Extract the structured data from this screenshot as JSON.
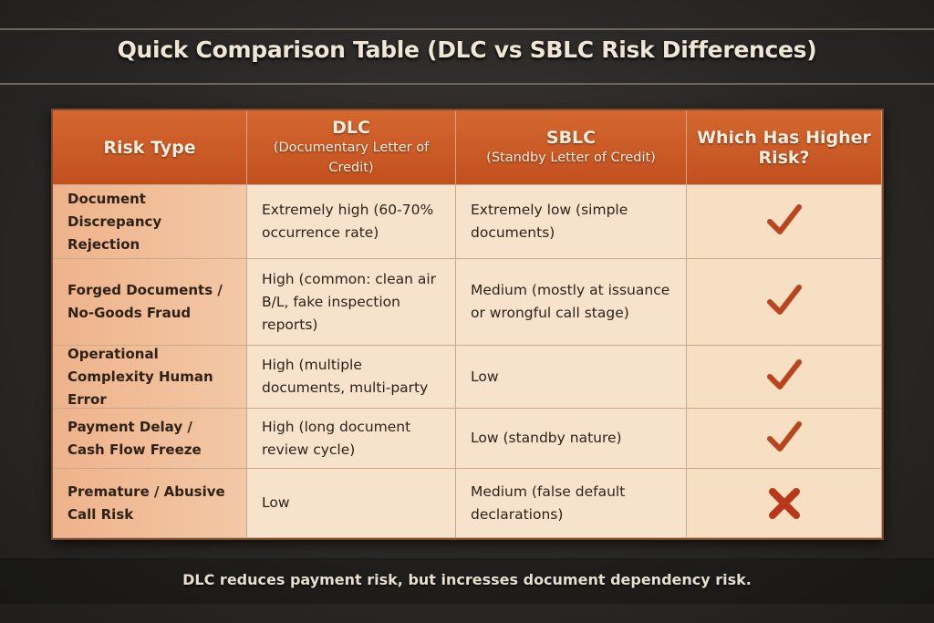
{
  "header": {
    "title": "Quick Comparison Table (DLC vs SBLC Risk Differences)"
  },
  "table": {
    "columns": [
      {
        "title": "Risk Type"
      },
      {
        "title": "DLC",
        "subtitle": "(Documentary Letter of Credit)"
      },
      {
        "title": "SBLC",
        "subtitle": "(Standby Letter of Credit)"
      },
      {
        "title": "Which Has Higher Risk?"
      }
    ],
    "rows": [
      [
        "Document Discrepancy Rejection",
        "Extremely high (60-70% occurrence rate)",
        "Extremely low (simple documents)"
      ],
      [
        "Forged Documents / No-Goods Fraud",
        "High (common: clean air B/L, fake inspection reports)",
        "Medium (mostly at issuance or wrongful call stage)"
      ],
      [
        "Operational Complexity Human Error",
        "High (multiple documents, multi-party",
        "Low"
      ],
      [
        "Payment Delay / Cash Flow Freeze",
        "High (long document review cycle)",
        "Low (standby nature)"
      ],
      [
        "Premature / Abusive Call Risk",
        "Low",
        "Medium (false default declarations)"
      ]
    ]
  },
  "footer": {
    "text": "DLC reduces payment risk, but incresses document dependency risk."
  }
}
